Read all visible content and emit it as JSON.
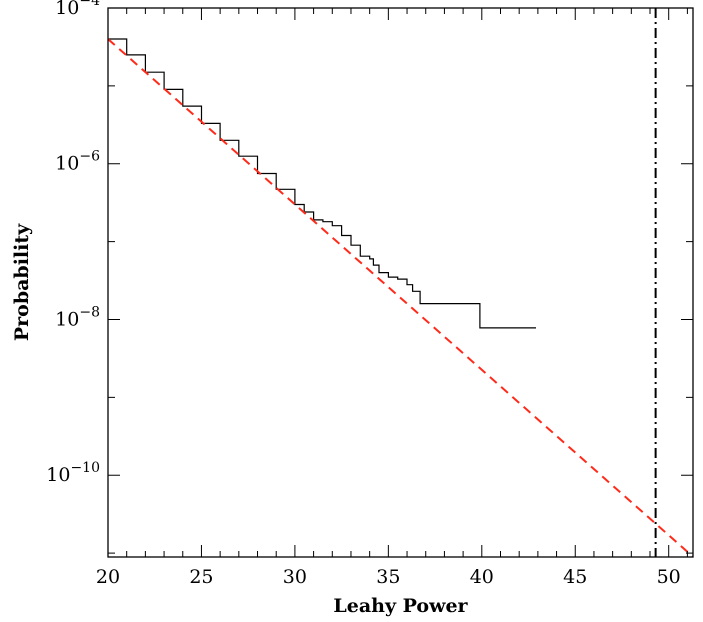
{
  "chart_data": {
    "type": "line",
    "title": "",
    "xlabel": "Leahy Power",
    "ylabel": "Probability",
    "xlim": [
      20,
      51.3
    ],
    "ylim_log10": [
      -11.05,
      -4
    ],
    "y_scale": "log",
    "grid": false,
    "x_major_ticks": [
      20,
      25,
      30,
      35,
      40,
      45,
      50
    ],
    "x_tick_labels": [
      "20",
      "25",
      "30",
      "35",
      "40",
      "45",
      "50"
    ],
    "y_major_ticks_log10": [
      -4,
      -6,
      -8,
      -10
    ],
    "y_tick_labels": [
      {
        "base": "10",
        "exp": "−4"
      },
      {
        "base": "10",
        "exp": "−6"
      },
      {
        "base": "10",
        "exp": "−8"
      },
      {
        "base": "10",
        "exp": "−10"
      }
    ],
    "series": [
      {
        "style": "solid-step",
        "color": "#000000",
        "points": [
          [
            20.0,
            4e-05
          ],
          [
            21.0,
            2.5e-05
          ],
          [
            22.0,
            1.5e-05
          ],
          [
            23.0,
            9e-06
          ],
          [
            24.0,
            5.5e-06
          ],
          [
            25.0,
            3.3e-06
          ],
          [
            26.0,
            2e-06
          ],
          [
            27.0,
            1.25e-06
          ],
          [
            28.0,
            7.5e-07
          ],
          [
            29.0,
            4.7e-07
          ],
          [
            30.0,
            3e-07
          ],
          [
            30.5,
            2.4e-07
          ],
          [
            31.0,
            1.9e-07
          ],
          [
            31.5,
            1.8e-07
          ],
          [
            32.0,
            1.6e-07
          ],
          [
            32.5,
            1.2e-07
          ],
          [
            33.0,
            9e-08
          ],
          [
            33.5,
            6.5e-08
          ],
          [
            34.0,
            6e-08
          ],
          [
            34.2,
            5e-08
          ],
          [
            34.5,
            4e-08
          ],
          [
            35.0,
            3.5e-08
          ],
          [
            35.5,
            3.3e-08
          ],
          [
            36.0,
            2.8e-08
          ],
          [
            36.3,
            2.3e-08
          ],
          [
            36.7,
            1.6e-08
          ],
          [
            39.9,
            1.6e-08
          ],
          [
            39.9,
            7.8e-09
          ],
          [
            42.9,
            7.8e-09
          ]
        ]
      },
      {
        "style": "dashed",
        "color": "#ff2a1a",
        "points": [
          [
            20.0,
            4e-05
          ],
          [
            51.3,
            9e-12
          ]
        ]
      }
    ],
    "vertical_line": {
      "x": 49.3,
      "style": "dash-dot",
      "color": "#000000"
    }
  }
}
